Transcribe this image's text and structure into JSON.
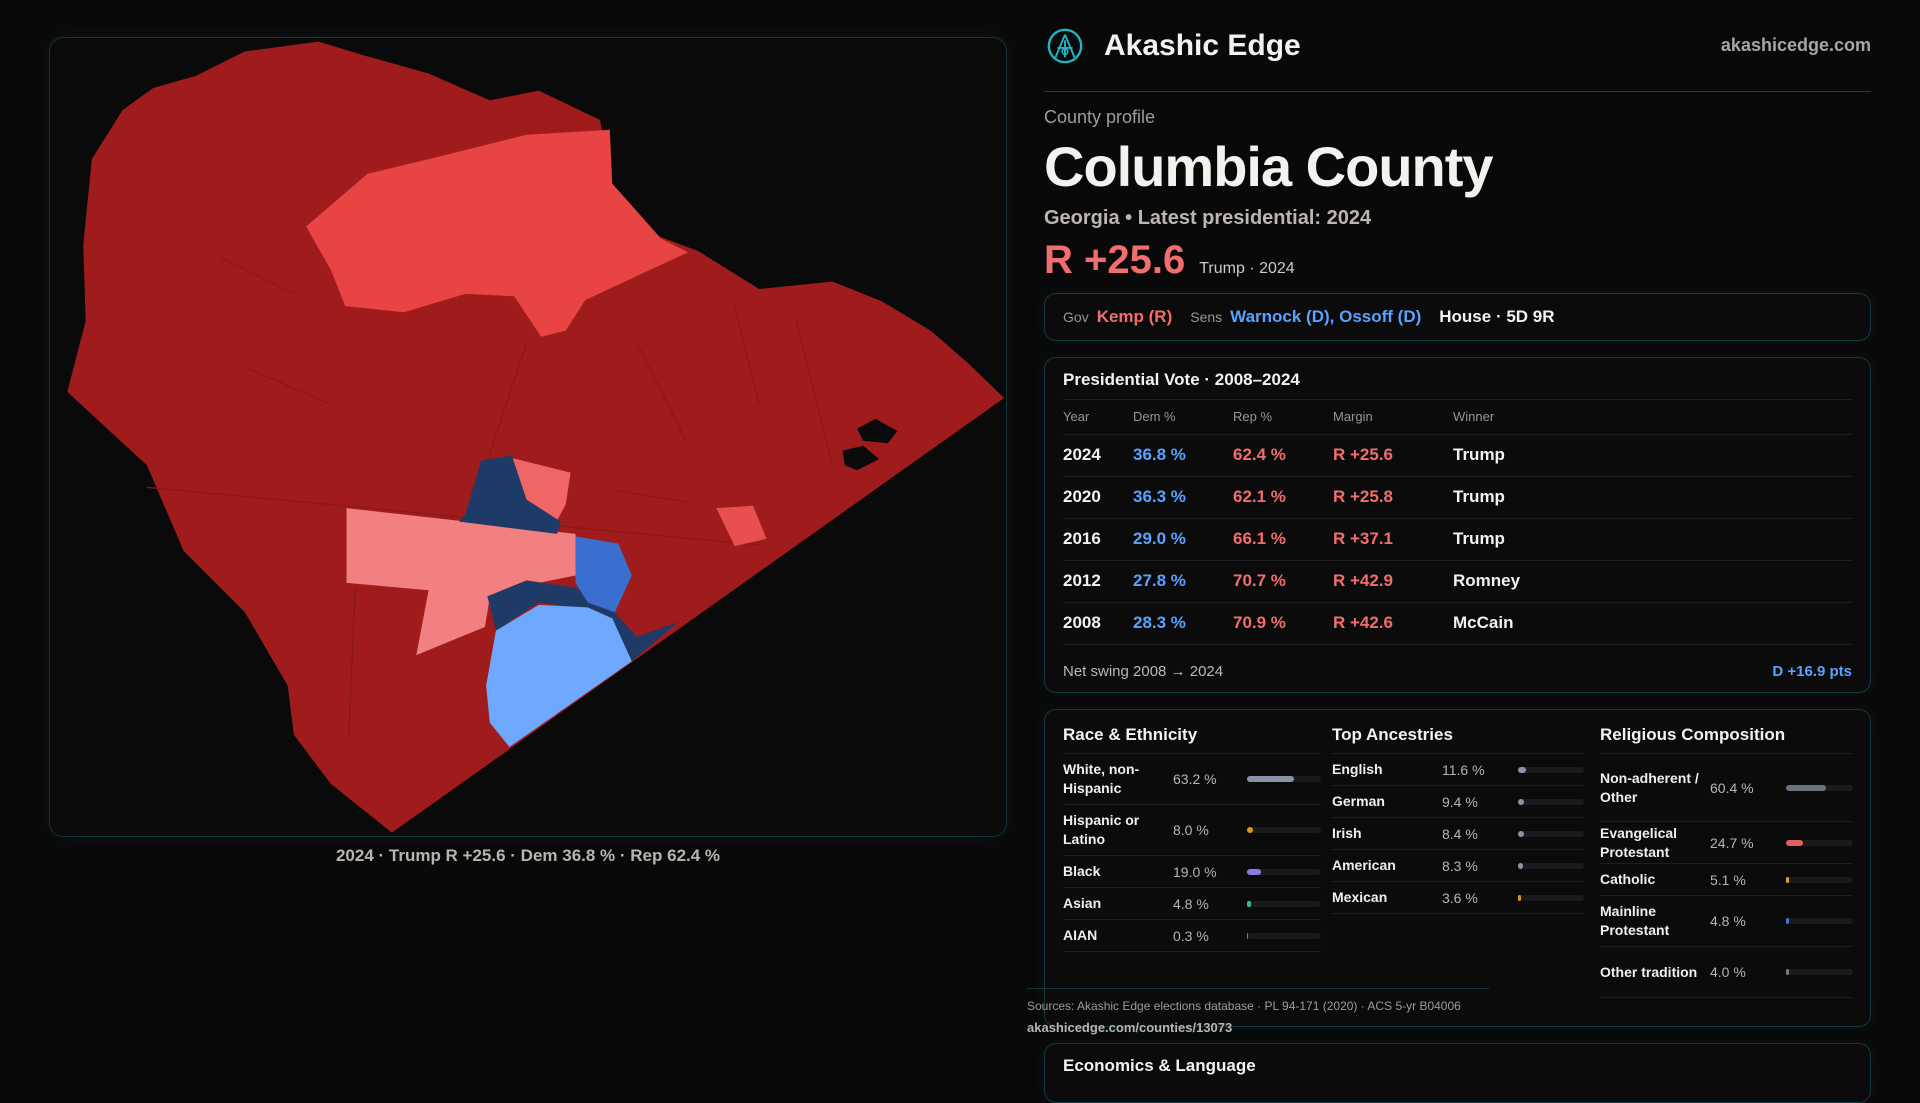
{
  "map": {
    "caption": "2024 · Trump R +25.6 · Dem 36.8 % · Rep 62.4 %"
  },
  "header": {
    "brand": "Akashic Edge",
    "site": "akashicedge.com"
  },
  "profile": {
    "kicker": "County profile",
    "title": "Columbia County",
    "subtitle": "Georgia • Latest presidential: 2024",
    "margin": "R +25.6",
    "margin_sub": "Trump · 2024"
  },
  "officials": {
    "gov_label": "Gov",
    "gov": "Kemp (R)",
    "sens_label": "Sens",
    "sens": "Warnock (D), Ossoff (D)",
    "house": "House · 5D 9R"
  },
  "presidential": {
    "title": "Presidential Vote · 2008–2024",
    "headers": [
      "Year",
      "Dem %",
      "Rep %",
      "Margin",
      "Winner"
    ],
    "rows": [
      [
        "2024",
        "36.8 %",
        "62.4 %",
        "R +25.6",
        "Trump"
      ],
      [
        "2020",
        "36.3 %",
        "62.1 %",
        "R +25.8",
        "Trump"
      ],
      [
        "2016",
        "29.0 %",
        "66.1 %",
        "R +37.1",
        "Trump"
      ],
      [
        "2012",
        "27.8 %",
        "70.7 %",
        "R +42.9",
        "Romney"
      ],
      [
        "2008",
        "28.3 %",
        "70.9 %",
        "R +42.6",
        "McCain"
      ]
    ],
    "swing_label": "Net swing 2008 → 2024",
    "swing_value": "D +16.9 pts"
  },
  "race": {
    "title": "Race & Ethnicity",
    "items": [
      {
        "name": "White, non-Hispanic",
        "value": "63.2 %",
        "pct": 63.2,
        "color": "#8a93a6"
      },
      {
        "name": "Hispanic or Latino",
        "value": "8.0 %",
        "pct": 8.0,
        "color": "#d99a1a"
      },
      {
        "name": "Black",
        "value": "19.0 %",
        "pct": 19.0,
        "color": "#8f7ae0"
      },
      {
        "name": "Asian",
        "value": "4.8 %",
        "pct": 4.8,
        "color": "#2fbf8a"
      },
      {
        "name": "AIAN",
        "value": "0.3 %",
        "pct": 0.3,
        "color": "#777"
      }
    ]
  },
  "ancestry": {
    "title": "Top Ancestries",
    "items": [
      {
        "name": "English",
        "value": "11.6 %",
        "pct": 11.6,
        "color": "#8a93a6"
      },
      {
        "name": "German",
        "value": "9.4 %",
        "pct": 9.4,
        "color": "#8a93a6"
      },
      {
        "name": "Irish",
        "value": "8.4 %",
        "pct": 8.4,
        "color": "#8a93a6"
      },
      {
        "name": "American",
        "value": "8.3 %",
        "pct": 8.3,
        "color": "#8a93a6"
      },
      {
        "name": "Mexican",
        "value": "3.6 %",
        "pct": 3.6,
        "color": "#d99a1a"
      }
    ]
  },
  "religion": {
    "title": "Religious Composition",
    "items": [
      {
        "name": "Non-adherent / Other",
        "value": "60.4 %",
        "pct": 60.4,
        "color": "#6b7280"
      },
      {
        "name": "Evangelical Protestant",
        "value": "24.7 %",
        "pct": 24.7,
        "color": "#e06060"
      },
      {
        "name": "Catholic",
        "value": "5.1 %",
        "pct": 5.1,
        "color": "#d9a81a"
      },
      {
        "name": "Mainline Protestant",
        "value": "4.8 %",
        "pct": 4.8,
        "color": "#3a7be0"
      },
      {
        "name": "Other tradition",
        "value": "4.0 %",
        "pct": 4.0,
        "color": "#777"
      }
    ]
  },
  "sources": {
    "text": "Sources: Akashic Edge elections database · PL 94-171 (2020) · ACS 5-yr B04006",
    "url": "akashicedge.com/counties/13073"
  },
  "economics": {
    "title": "Economics & Language"
  },
  "colors": {
    "rep": "#f26d6d",
    "dem": "#5aa2ff",
    "accent": "#1fb5c4"
  }
}
